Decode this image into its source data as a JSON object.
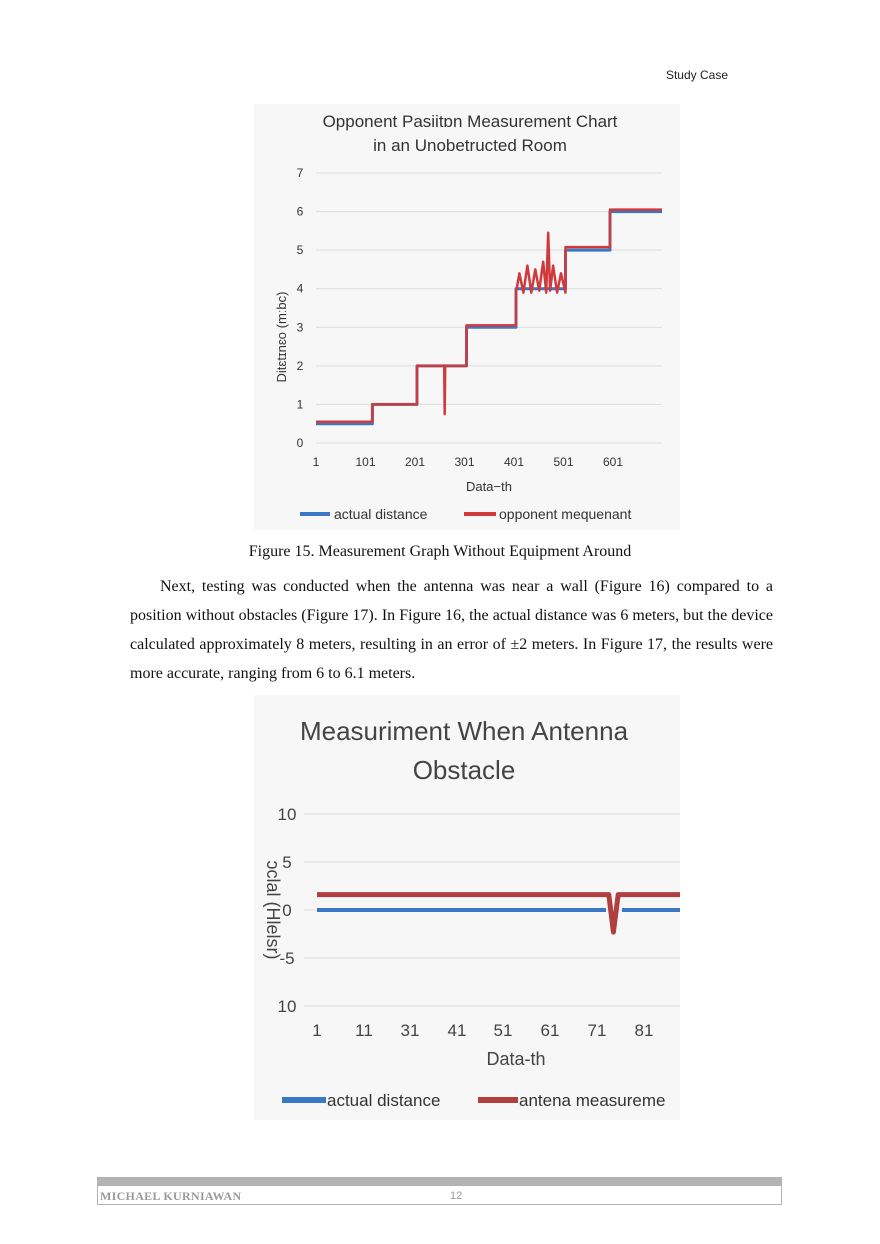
{
  "header": {
    "section": "Study Case"
  },
  "figure15": {
    "caption": "Figure 15. Measurement Graph Without Equipment Around",
    "chart_data": {
      "type": "line",
      "title_line1": "Opponent Pasiitɒn Measurement Chart",
      "title_line2": "in an Unobetructed Room",
      "xlabel": "Data−th",
      "ylabel": "Ditɛtɪnɛo (mːbc)",
      "ylim": [
        0,
        7
      ],
      "yticks": [
        "0",
        "1",
        "2",
        "3",
        "4",
        "5",
        "6",
        "7"
      ],
      "xlim": [
        1,
        700
      ],
      "xticks": [
        "1",
        "101",
        "201",
        "301",
        "401",
        "501",
        "601"
      ],
      "grid": true,
      "legend_position": "bottom",
      "series": [
        {
          "name": "actual distance",
          "color": "#3a78c4",
          "x": [
            1,
            115,
            115,
            205,
            205,
            305,
            305,
            405,
            405,
            505,
            505,
            595,
            595,
            700
          ],
          "y": [
            0.5,
            0.5,
            1.0,
            1.0,
            2.0,
            2.0,
            3.0,
            3.0,
            4.0,
            4.0,
            5.0,
            5.0,
            6.0,
            6.0
          ]
        },
        {
          "name": "opponent mequenant",
          "color": "#d03a3a",
          "x": [
            1,
            115,
            115,
            205,
            205,
            260,
            261,
            262,
            305,
            305,
            405,
            405,
            412,
            420,
            428,
            436,
            444,
            452,
            460,
            466,
            470,
            474,
            480,
            488,
            496,
            505,
            505,
            595,
            595,
            700
          ],
          "y": [
            0.55,
            0.55,
            1.0,
            1.0,
            2.0,
            2.0,
            0.75,
            2.0,
            2.0,
            3.05,
            3.05,
            3.9,
            4.4,
            3.9,
            4.6,
            3.9,
            4.5,
            3.95,
            4.7,
            3.9,
            5.45,
            3.95,
            4.6,
            3.9,
            4.4,
            3.9,
            5.08,
            5.08,
            6.05,
            6.05
          ]
        }
      ]
    }
  },
  "paragraph": "Next, testing was conducted when the antenna was near a wall (Figure 16) compared to a position without obstacles (Figure 17). In Figure 16, the actual distance was 6 meters, but the device calculated approximately 8 meters, resulting in an error of ±2 meters. In Figure 17, the results were more accurate, ranging from 6 to 6.1 meters.",
  "figure16": {
    "chart_data": {
      "type": "line",
      "title_line1": "Measuriment When Antenna",
      "title_line2": "Obstacle",
      "xlabel": "Data-th",
      "ylabel": "ɔclal (Hlelsr)",
      "ylim": [
        -10,
        10
      ],
      "yticks": [
        "10",
        "5",
        "0",
        "-5",
        "10"
      ],
      "xticks": [
        "1",
        "11",
        "31",
        "41",
        "51",
        "61",
        "71",
        "81"
      ],
      "grid": true,
      "legend_position": "bottom",
      "series": [
        {
          "name": "actual distance",
          "color": "#3a78c4",
          "points_index": [
            0,
            9
          ],
          "y": [
            0,
            0
          ]
        },
        {
          "name": "antena measureme",
          "color": "#b04040",
          "points_index": [
            0,
            6.25,
            6.35,
            6.45,
            6.55,
            9
          ],
          "y": [
            1.6,
            1.6,
            -2.3,
            1.6,
            1.6,
            1.6
          ]
        }
      ]
    }
  },
  "footer": {
    "author": "MICHAEL KURNIAWAN",
    "page_number": "12"
  }
}
